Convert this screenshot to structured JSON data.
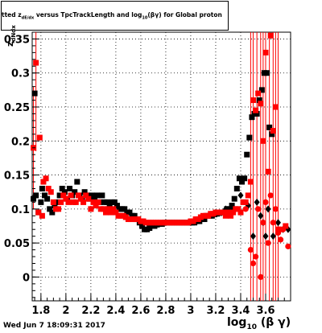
{
  "title": {
    "pre": "tted  z",
    "pre_sub": "dE/dx",
    "mid": " versus TpcTrackLength and log",
    "mid_sub": "10",
    "post": "(βγ) for Global proton"
  },
  "stamp": "Wed Jun  7 18:09:31 2017",
  "ylabel": {
    "main": "z",
    "sub": "dNdx"
  },
  "xlabel": {
    "main": "log",
    "sub": "10",
    "post": "(β γ)"
  },
  "colors": {
    "series_a": "#000000",
    "series_b": "#ff0000",
    "axis": "#000000"
  },
  "chart_data": {
    "type": "scatter",
    "title": "tted  z dE/dx versus TpcTrackLength and log10(βγ) for Global proton",
    "xlabel": "log10(β γ)",
    "ylabel": "z dNdx",
    "xlim": [
      1.73,
      3.8
    ],
    "ylim": [
      -0.035,
      0.36
    ],
    "x_ticks": [
      1.8,
      2,
      2.2,
      2.4,
      2.6,
      2.8,
      3,
      3.2,
      3.4,
      3.6
    ],
    "x_tick_labels": [
      "1.8",
      "2",
      "2.2",
      "2.4",
      "2.6",
      "2.8",
      "3",
      "3.2",
      "3.4",
      "3.6"
    ],
    "y_ticks": [
      0,
      0.05,
      0.1,
      0.15,
      0.2,
      0.25,
      0.3,
      0.35
    ],
    "y_tick_labels": [
      "0",
      "0.05",
      "0.1",
      "0.15",
      "0.2",
      "0.25",
      "0.3",
      "0.35"
    ],
    "grid": true,
    "legend": "none",
    "series": [
      {
        "marker": "black-square",
        "points": [
          [
            1.74,
            0.115
          ],
          [
            1.75,
            0.27
          ],
          [
            1.76,
            0.12
          ],
          [
            1.78,
            0.095
          ],
          [
            1.8,
            0.11
          ],
          [
            1.81,
            0.13
          ],
          [
            1.83,
            0.12
          ],
          [
            1.85,
            0.115
          ],
          [
            1.87,
            0.1
          ],
          [
            1.89,
            0.095
          ],
          [
            1.91,
            0.105
          ],
          [
            1.93,
            0.11
          ],
          [
            1.95,
            0.12
          ],
          [
            1.97,
            0.13
          ],
          [
            1.99,
            0.125
          ],
          [
            2.01,
            0.115
          ],
          [
            2.03,
            0.13
          ],
          [
            2.05,
            0.12
          ],
          [
            2.07,
            0.125
          ],
          [
            2.09,
            0.14
          ],
          [
            2.11,
            0.12
          ],
          [
            2.13,
            0.115
          ],
          [
            2.15,
            0.125
          ],
          [
            2.17,
            0.12
          ],
          [
            2.19,
            0.115
          ],
          [
            2.21,
            0.12
          ],
          [
            2.23,
            0.115
          ],
          [
            2.25,
            0.12
          ],
          [
            2.27,
            0.11
          ],
          [
            2.29,
            0.12
          ],
          [
            2.31,
            0.11
          ],
          [
            2.33,
            0.11
          ],
          [
            2.35,
            0.105
          ],
          [
            2.37,
            0.11
          ],
          [
            2.39,
            0.11
          ],
          [
            2.41,
            0.105
          ],
          [
            2.43,
            0.1
          ],
          [
            2.45,
            0.1
          ],
          [
            2.47,
            0.1
          ],
          [
            2.49,
            0.095
          ],
          [
            2.51,
            0.095
          ],
          [
            2.53,
            0.09
          ],
          [
            2.55,
            0.09
          ],
          [
            2.57,
            0.085
          ],
          [
            2.59,
            0.08
          ],
          [
            2.61,
            0.075
          ],
          [
            2.63,
            0.07
          ],
          [
            2.65,
            0.07
          ],
          [
            2.67,
            0.072
          ],
          [
            2.69,
            0.075
          ],
          [
            2.71,
            0.075
          ],
          [
            2.73,
            0.077
          ],
          [
            2.75,
            0.078
          ],
          [
            2.77,
            0.078
          ],
          [
            2.79,
            0.08
          ],
          [
            2.81,
            0.08
          ],
          [
            2.83,
            0.08
          ],
          [
            2.85,
            0.08
          ],
          [
            2.87,
            0.08
          ],
          [
            2.89,
            0.08
          ],
          [
            2.91,
            0.08
          ],
          [
            2.93,
            0.08
          ],
          [
            2.95,
            0.08
          ],
          [
            2.97,
            0.08
          ],
          [
            2.99,
            0.08
          ],
          [
            3.01,
            0.08
          ],
          [
            3.03,
            0.08
          ],
          [
            3.05,
            0.082
          ],
          [
            3.07,
            0.082
          ],
          [
            3.09,
            0.085
          ],
          [
            3.11,
            0.085
          ],
          [
            3.13,
            0.09
          ],
          [
            3.15,
            0.09
          ],
          [
            3.17,
            0.09
          ],
          [
            3.19,
            0.092
          ],
          [
            3.21,
            0.093
          ],
          [
            3.23,
            0.094
          ],
          [
            3.25,
            0.095
          ],
          [
            3.27,
            0.095
          ],
          [
            3.29,
            0.1
          ],
          [
            3.31,
            0.1
          ],
          [
            3.33,
            0.105
          ],
          [
            3.35,
            0.115
          ],
          [
            3.37,
            0.13
          ],
          [
            3.39,
            0.145
          ],
          [
            3.41,
            0.14
          ],
          [
            3.43,
            0.145
          ],
          [
            3.45,
            0.18
          ],
          [
            3.47,
            0.205
          ],
          [
            3.49,
            0.235
          ],
          [
            3.51,
            0.24
          ],
          [
            3.53,
            0.24
          ],
          [
            3.55,
            0.26
          ],
          [
            3.57,
            0.275
          ],
          [
            3.59,
            0.3
          ],
          [
            3.61,
            0.3
          ],
          [
            3.63,
            0.22
          ],
          [
            3.65,
            0.21
          ]
        ]
      },
      {
        "marker": "black-diamond",
        "points": [
          [
            3.28,
            0.1
          ],
          [
            3.32,
            0.1
          ],
          [
            3.4,
            0.12
          ],
          [
            3.46,
            0.105
          ],
          [
            3.5,
            0.06
          ],
          [
            3.53,
            0.11
          ],
          [
            3.56,
            0.09
          ],
          [
            3.58,
            0.08
          ],
          [
            3.6,
            0.06
          ],
          [
            3.62,
            0.1
          ],
          [
            3.66,
            0.06
          ],
          [
            3.7,
            0.08
          ],
          [
            3.74,
            0.07
          ],
          [
            3.78,
            0.07
          ]
        ]
      },
      {
        "marker": "red-square",
        "points": [
          [
            1.74,
            0.19
          ],
          [
            1.76,
            0.315
          ],
          [
            1.78,
            0.095
          ],
          [
            1.79,
            0.205
          ],
          [
            1.81,
            0.09
          ],
          [
            1.82,
            0.14
          ],
          [
            1.84,
            0.145
          ],
          [
            1.86,
            0.13
          ],
          [
            1.88,
            0.125
          ],
          [
            1.9,
            0.11
          ],
          [
            1.92,
            0.1
          ],
          [
            1.94,
            0.1
          ],
          [
            1.96,
            0.11
          ],
          [
            1.98,
            0.12
          ],
          [
            2.0,
            0.115
          ],
          [
            2.02,
            0.11
          ],
          [
            2.04,
            0.12
          ],
          [
            2.06,
            0.11
          ],
          [
            2.08,
            0.11
          ],
          [
            2.1,
            0.12
          ],
          [
            2.12,
            0.115
          ],
          [
            2.14,
            0.11
          ],
          [
            2.16,
            0.12
          ],
          [
            2.18,
            0.115
          ],
          [
            2.2,
            0.1
          ],
          [
            2.22,
            0.11
          ],
          [
            2.24,
            0.105
          ],
          [
            2.26,
            0.11
          ],
          [
            2.28,
            0.1
          ],
          [
            2.3,
            0.1
          ],
          [
            2.32,
            0.095
          ],
          [
            2.34,
            0.1
          ],
          [
            2.36,
            0.095
          ],
          [
            2.38,
            0.1
          ],
          [
            2.4,
            0.095
          ],
          [
            2.42,
            0.09
          ],
          [
            2.44,
            0.09
          ],
          [
            2.46,
            0.09
          ],
          [
            2.48,
            0.088
          ],
          [
            2.5,
            0.085
          ],
          [
            2.52,
            0.085
          ],
          [
            2.54,
            0.085
          ],
          [
            2.56,
            0.085
          ],
          [
            2.58,
            0.085
          ],
          [
            2.6,
            0.082
          ],
          [
            2.62,
            0.082
          ],
          [
            2.64,
            0.08
          ],
          [
            2.66,
            0.08
          ],
          [
            2.68,
            0.08
          ],
          [
            2.7,
            0.08
          ],
          [
            2.72,
            0.08
          ],
          [
            2.74,
            0.08
          ],
          [
            2.76,
            0.08
          ],
          [
            2.78,
            0.08
          ],
          [
            2.8,
            0.08
          ],
          [
            2.82,
            0.08
          ],
          [
            2.84,
            0.08
          ],
          [
            2.86,
            0.08
          ],
          [
            2.88,
            0.08
          ],
          [
            2.9,
            0.08
          ],
          [
            2.92,
            0.08
          ],
          [
            2.94,
            0.08
          ],
          [
            2.96,
            0.08
          ],
          [
            2.98,
            0.08
          ],
          [
            3.0,
            0.082
          ],
          [
            3.02,
            0.082
          ],
          [
            3.04,
            0.085
          ],
          [
            3.06,
            0.085
          ],
          [
            3.08,
            0.088
          ],
          [
            3.1,
            0.09
          ],
          [
            3.12,
            0.09
          ],
          [
            3.14,
            0.09
          ],
          [
            3.16,
            0.093
          ],
          [
            3.18,
            0.093
          ],
          [
            3.2,
            0.095
          ],
          [
            3.22,
            0.095
          ],
          [
            3.24,
            0.095
          ],
          [
            3.26,
            0.095
          ],
          [
            3.28,
            0.09
          ],
          [
            3.3,
            0.095
          ],
          [
            3.32,
            0.09
          ],
          [
            3.34,
            0.095
          ],
          [
            3.36,
            0.1
          ],
          [
            3.38,
            0.1
          ],
          [
            3.4,
            0.095
          ],
          [
            3.42,
            0.11
          ],
          [
            3.44,
            0.11
          ],
          [
            3.46,
            0.12
          ],
          [
            3.48,
            0.14
          ],
          [
            3.5,
            0.26
          ],
          [
            3.52,
            0.245
          ],
          [
            3.54,
            0.27
          ],
          [
            3.56,
            0.255
          ],
          [
            3.58,
            0.2
          ],
          [
            3.6,
            0.33
          ],
          [
            3.62,
            0.155
          ],
          [
            3.64,
            0.355
          ],
          [
            3.66,
            0.215
          ],
          [
            3.68,
            0.25
          ],
          [
            3.7,
            0.07
          ],
          [
            3.72,
            0.07
          ],
          [
            3.76,
            0.075
          ]
        ]
      },
      {
        "marker": "red-circle",
        "points": [
          [
            3.44,
            0.1
          ],
          [
            3.48,
            0.04
          ],
          [
            3.5,
            0.02
          ],
          [
            3.52,
            0.03
          ],
          [
            3.54,
            0.1
          ],
          [
            3.56,
            0.0
          ],
          [
            3.58,
            0.08
          ],
          [
            3.6,
            0.11
          ],
          [
            3.62,
            0.05
          ],
          [
            3.64,
            0.12
          ],
          [
            3.66,
            0.08
          ],
          [
            3.68,
            0.1
          ],
          [
            3.7,
            0.065
          ],
          [
            3.72,
            0.055
          ],
          [
            3.74,
            0.07
          ],
          [
            3.78,
            0.045
          ]
        ]
      }
    ],
    "error_bars": [
      {
        "x": 1.74,
        "y": 0.19,
        "err": 0.09
      },
      {
        "x": 1.76,
        "y": 0.315,
        "err": 0.13
      },
      {
        "x": 3.48,
        "y": 0.14,
        "err": 0.25
      },
      {
        "x": 3.5,
        "y": 0.26,
        "err": 0.3
      },
      {
        "x": 3.53,
        "y": 0.24,
        "err": 0.3
      },
      {
        "x": 3.56,
        "y": 0.255,
        "err": 0.35
      },
      {
        "x": 3.58,
        "y": 0.2,
        "err": 0.3
      },
      {
        "x": 3.6,
        "y": 0.33,
        "err": 0.4
      },
      {
        "x": 3.63,
        "y": 0.22,
        "err": 0.35
      },
      {
        "x": 3.66,
        "y": 0.215,
        "err": 0.35
      },
      {
        "x": 3.68,
        "y": 0.25,
        "err": 0.35
      },
      {
        "x": 3.7,
        "y": 0.07,
        "err": 0.3
      }
    ]
  }
}
